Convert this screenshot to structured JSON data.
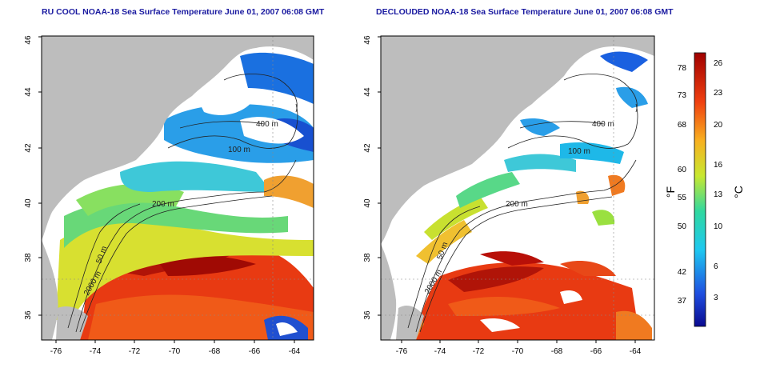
{
  "titles": {
    "left": "RU COOL NOAA-18 Sea Surface Temperature June 01, 2007 06:08 GMT",
    "right": "DECLOUDED NOAA-18 Sea Surface Temperature June 01, 2007 06:08 GMT"
  },
  "axes": {
    "lat_ticks": [
      "36",
      "38",
      "40",
      "42",
      "44",
      "46"
    ],
    "lon_ticks": [
      "-76",
      "-74",
      "-72",
      "-70",
      "-68",
      "-66",
      "-64"
    ]
  },
  "contours": {
    "c100": "100 m",
    "c200": "200 m",
    "c50": "50 m",
    "c2000": "2000 m",
    "c400": "400 m"
  },
  "colorbar": {
    "fahrenheit_label": "°F",
    "celsius_label": "°C",
    "fahrenheit_ticks": [
      "78",
      "73",
      "68",
      "60",
      "55",
      "50",
      "42",
      "37"
    ],
    "celsius_ticks": [
      "26",
      "23",
      "20",
      "16",
      "13",
      "10",
      "6",
      "3"
    ]
  },
  "colors": {
    "land": "#bdbdbd",
    "cloud": "#ffffff",
    "title": "#1a1aa0"
  }
}
